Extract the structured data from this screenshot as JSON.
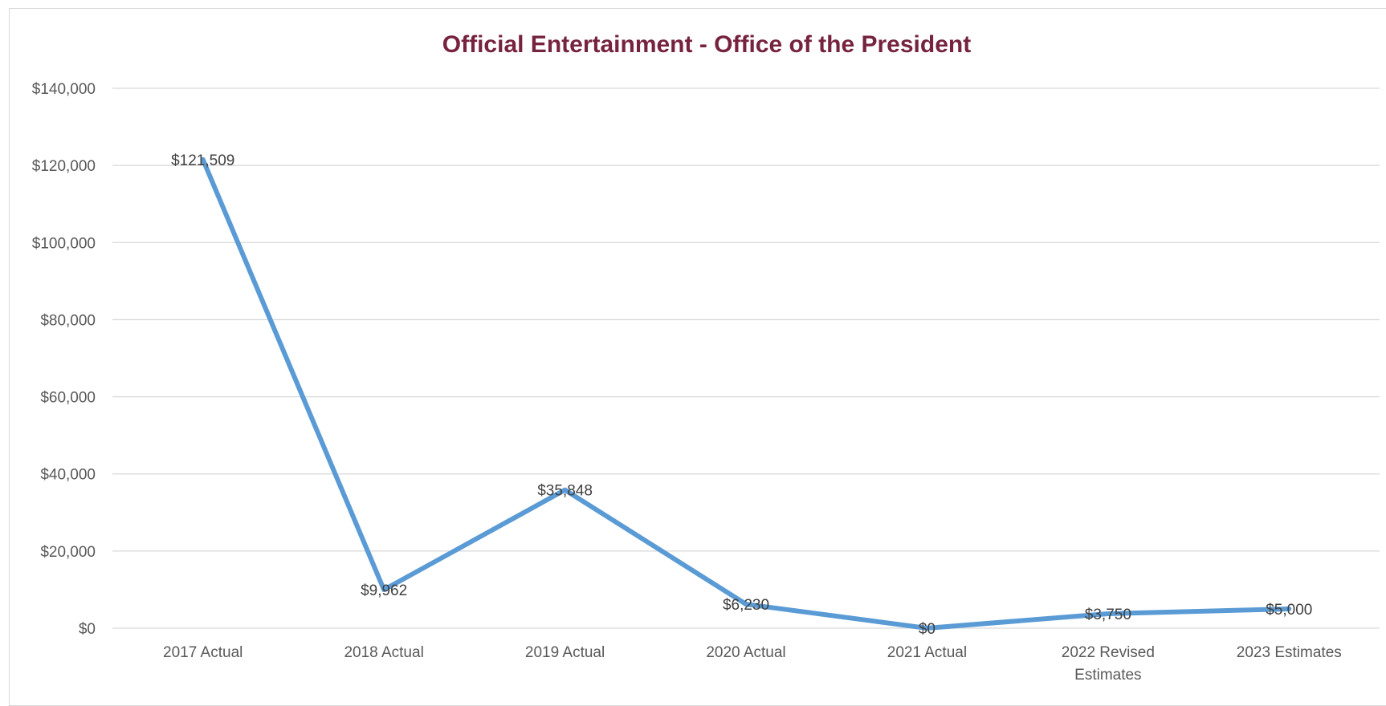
{
  "chart_data": {
    "type": "line",
    "title": "Official Entertainment - Office of the President",
    "categories": [
      "2017 Actual",
      "2018 Actual",
      "2019  Actual",
      "2020 Actual",
      "2021 Actual",
      "2022 Revised Estimates",
      "2023 Estimates"
    ],
    "category_lines": [
      [
        "2017 Actual"
      ],
      [
        "2018 Actual"
      ],
      [
        "2019  Actual"
      ],
      [
        "2020 Actual"
      ],
      [
        "2021 Actual"
      ],
      [
        "2022 Revised",
        "Estimates"
      ],
      [
        "2023 Estimates"
      ]
    ],
    "series": [
      {
        "values": [
          121509,
          9962,
          35848,
          6230,
          0,
          3750,
          5000
        ]
      }
    ],
    "data_labels": [
      "$121,509",
      "$9,962",
      "$35,848",
      "$6,230",
      "$0",
      "$3,750",
      "$5,000"
    ],
    "ylim": [
      0,
      140000
    ],
    "yticks": [
      0,
      20000,
      40000,
      60000,
      80000,
      100000,
      120000,
      140000
    ],
    "ytick_labels": [
      "$0",
      "$20,000",
      "$40,000",
      "$60,000",
      "$80,000",
      "$100,000",
      "$120,000",
      "$140,000"
    ],
    "xlabel": "",
    "ylabel": "",
    "grid": true,
    "legend": "none",
    "colors": {
      "line": "#5b9bd5",
      "title": "#76233f",
      "grid": "#d9d9d9"
    }
  }
}
